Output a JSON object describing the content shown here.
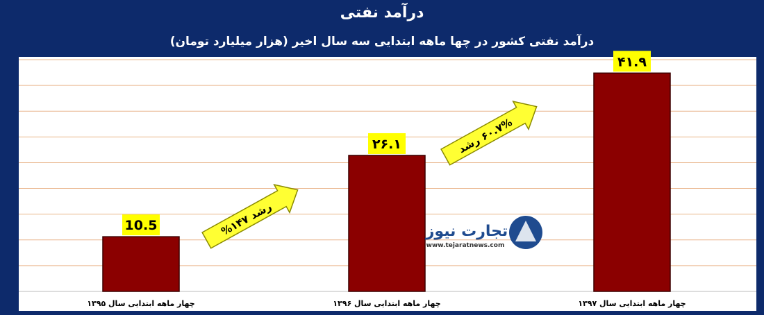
{
  "header": {
    "title": "درآمد نفتی",
    "subtitle": "درآمد نفتی کشور در چها ماهه ابتدایی سه سال اخیر (هزار میلیارد تومان)"
  },
  "chart_data": {
    "type": "bar",
    "categories": [
      "چهار ماهه  ابتدایی سال ۱۳۹۵",
      "چهار ماهه  ابتدایی سال ۱۳۹۶",
      "چهار ماهه  ابتدایی سال ۱۳۹۷"
    ],
    "values": [
      10.5,
      26.1,
      41.9
    ],
    "value_labels": [
      "10.5",
      "۲۶.۱",
      "۴۱.۹"
    ],
    "ylim": [
      0,
      45
    ],
    "grid": true,
    "colors": {
      "bar": "#8b0000",
      "bar_border": "#3a0000",
      "label_bg": "#ffff00",
      "grid": "#e9b48a",
      "arrow": "#ffff33"
    },
    "annotations": [
      {
        "text": "رشد ۱۴۷%",
        "from": 0,
        "to": 1
      },
      {
        "text": "۶۰.۷% رشد",
        "from": 1,
        "to": 2
      }
    ]
  },
  "watermark": {
    "name": "تجارت نیوز",
    "url": "www.tejaratnews.com"
  }
}
